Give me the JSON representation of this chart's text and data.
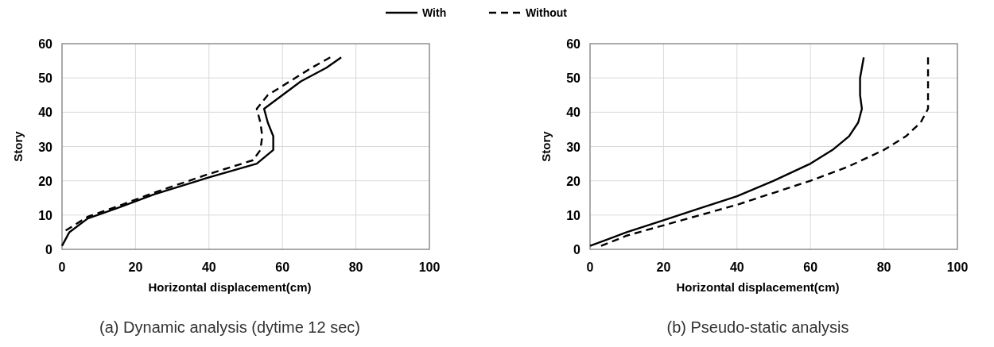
{
  "chart_data": [
    {
      "type": "line",
      "title": "(a) Dynamic analysis (dytime 12 sec)",
      "xlabel": "Horizontal displacement(cm)",
      "ylabel": "Story",
      "xlim": [
        0,
        100
      ],
      "xticks": [
        0,
        20,
        40,
        60,
        80,
        100
      ],
      "ylim": [
        0,
        60
      ],
      "yticks": [
        0,
        10,
        20,
        30,
        40,
        50,
        60
      ],
      "grid": true,
      "legend": "top",
      "series": [
        {
          "name": "With",
          "color": "#000000",
          "line_style": "solid",
          "x": [
            0,
            2,
            7,
            15,
            25,
            40,
            53,
            57.5,
            57.5,
            56,
            55,
            60,
            65,
            72,
            76
          ],
          "values": [
            1,
            5,
            9,
            12,
            16,
            21,
            25,
            29,
            33,
            37,
            41,
            45,
            49,
            53,
            56
          ]
        },
        {
          "name": "Without",
          "color": "#000000",
          "line_style": "dashed",
          "x": [
            1,
            7,
            15,
            25,
            40,
            52,
            54,
            54.5,
            54,
            53,
            56,
            62,
            68,
            73
          ],
          "values": [
            5.5,
            9.5,
            12.5,
            16.5,
            22,
            26,
            29,
            33,
            37,
            41,
            45,
            49,
            53,
            56
          ]
        }
      ]
    },
    {
      "type": "line",
      "title": "(b) Pseudo-static analysis",
      "xlabel": "Horizontal displacement(cm)",
      "ylabel": "Story",
      "xlim": [
        0,
        100
      ],
      "xticks": [
        0,
        20,
        40,
        60,
        80,
        100
      ],
      "ylim": [
        0,
        60
      ],
      "yticks": [
        0,
        10,
        20,
        30,
        40,
        50,
        60
      ],
      "grid": true,
      "series": [
        {
          "color": "#000000",
          "line_style": "solid",
          "x": [
            0,
            10,
            20,
            30,
            40,
            50,
            60,
            66,
            70.5,
            73,
            74,
            73.5,
            73.5,
            74,
            74.5
          ],
          "values": [
            1,
            5,
            8.5,
            12,
            15.5,
            20,
            25,
            29,
            33,
            37,
            41,
            45,
            50,
            53,
            56
          ]
        },
        {
          "color": "#000000",
          "line_style": "dashed",
          "x": [
            3,
            10,
            20,
            30,
            40,
            50,
            60,
            70,
            80,
            86,
            90,
            92,
            92,
            92,
            92,
            92
          ],
          "values": [
            1,
            4,
            7,
            10,
            13,
            16.5,
            20,
            24,
            29,
            33,
            37,
            41,
            45,
            50,
            53,
            56
          ]
        }
      ]
    }
  ]
}
